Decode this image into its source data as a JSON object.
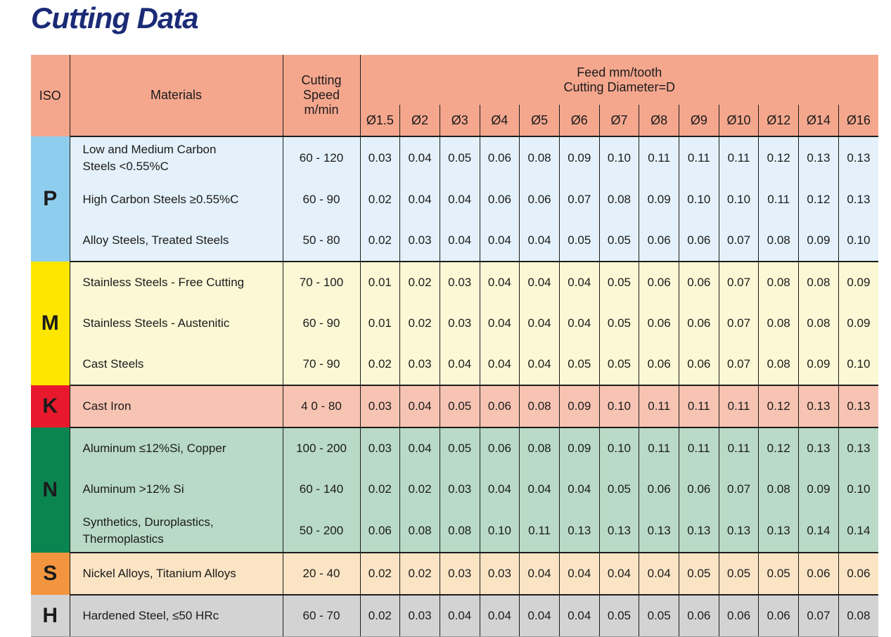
{
  "title": "Cutting Data",
  "colors": {
    "title": "#1B2B76",
    "header_bg": "#F5A78E",
    "border": "#1C1C1C",
    "iso_p": "#8FCDEE",
    "body_p": "#E4F1FA",
    "iso_m": "#FFE600",
    "body_m": "#FCF8D6",
    "iso_k": "#E8192D",
    "body_k": "#F7C3B2",
    "iso_n": "#0B8550",
    "body_n": "#B9DAC6",
    "iso_s": "#F3953F",
    "body_s": "#FBE4C4",
    "iso_h": "#D3D3D3",
    "body_h": "#D3D3D3"
  },
  "table": {
    "headers": {
      "iso": "ISO",
      "materials": "Materials",
      "cutting_speed": "Cutting\nSpeed\nm/min",
      "feed_title": "Feed mm/tooth\nCutting Diameter=D",
      "diameters": [
        "Ø1.5",
        "Ø2",
        "Ø3",
        "Ø4",
        "Ø5",
        "Ø6",
        "Ø7",
        "Ø8",
        "Ø9",
        "Ø10",
        "Ø12",
        "Ø14",
        "Ø16"
      ]
    },
    "groups": [
      {
        "iso": "P",
        "iso_bg": "#8FCDEE",
        "row_bg": "#E4F1FA",
        "rows": [
          {
            "material": "Low and Medium Carbon\nSteels <0.55%C",
            "speed": "60 - 120",
            "feeds": [
              "0.03",
              "0.04",
              "0.05",
              "0.06",
              "0.08",
              "0.09",
              "0.10",
              "0.11",
              "0.11",
              "0.11",
              "0.12",
              "0.13",
              "0.13"
            ]
          },
          {
            "material": "High Carbon Steels ≥0.55%C",
            "speed": "60 - 90",
            "feeds": [
              "0.02",
              "0.04",
              "0.04",
              "0.06",
              "0.06",
              "0.07",
              "0.08",
              "0.09",
              "0.10",
              "0.10",
              "0.11",
              "0.12",
              "0.13"
            ]
          },
          {
            "material": "Alloy Steels, Treated Steels",
            "speed": "50 - 80",
            "feeds": [
              "0.02",
              "0.03",
              "0.04",
              "0.04",
              "0.04",
              "0.05",
              "0.05",
              "0.06",
              "0.06",
              "0.07",
              "0.08",
              "0.09",
              "0.10"
            ]
          }
        ]
      },
      {
        "iso": "M",
        "iso_bg": "#FFE600",
        "row_bg": "#FCF8D6",
        "rows": [
          {
            "material": "Stainless Steels - Free Cutting",
            "speed": "70 - 100",
            "feeds": [
              "0.01",
              "0.02",
              "0.03",
              "0.04",
              "0.04",
              "0.04",
              "0.05",
              "0.06",
              "0.06",
              "0.07",
              "0.08",
              "0.08",
              "0.09"
            ]
          },
          {
            "material": "Stainless Steels - Austenitic",
            "speed": "60 - 90",
            "feeds": [
              "0.01",
              "0.02",
              "0.03",
              "0.04",
              "0.04",
              "0.04",
              "0.05",
              "0.06",
              "0.06",
              "0.07",
              "0.08",
              "0.08",
              "0.09"
            ]
          },
          {
            "material": "Cast Steels",
            "speed": "70 - 90",
            "feeds": [
              "0.02",
              "0.03",
              "0.04",
              "0.04",
              "0.04",
              "0.05",
              "0.05",
              "0.06",
              "0.06",
              "0.07",
              "0.08",
              "0.09",
              "0.10"
            ]
          }
        ]
      },
      {
        "iso": "K",
        "iso_bg": "#E8192D",
        "row_bg": "#F7C3B2",
        "rows": [
          {
            "material": "Cast Iron",
            "speed": "4 0 - 80",
            "feeds": [
              "0.03",
              "0.04",
              "0.05",
              "0.06",
              "0.08",
              "0.09",
              "0.10",
              "0.11",
              "0.11",
              "0.11",
              "0.12",
              "0.13",
              "0.13"
            ]
          }
        ]
      },
      {
        "iso": "N",
        "iso_bg": "#0B8550",
        "row_bg": "#B9DAC6",
        "rows": [
          {
            "material": "Aluminum ≤12%Si, Copper",
            "speed": "100 - 200",
            "feeds": [
              "0.03",
              "0.04",
              "0.05",
              "0.06",
              "0.08",
              "0.09",
              "0.10",
              "0.11",
              "0.11",
              "0.11",
              "0.12",
              "0.13",
              "0.13"
            ]
          },
          {
            "material": "Aluminum >12% Si",
            "speed": "60 - 140",
            "feeds": [
              "0.02",
              "0.02",
              "0.03",
              "0.04",
              "0.04",
              "0.04",
              "0.05",
              "0.06",
              "0.06",
              "0.07",
              "0.08",
              "0.09",
              "0.10"
            ]
          },
          {
            "material": "Synthetics, Duroplastics,\nThermoplastics",
            "speed": "50 - 200",
            "feeds": [
              "0.06",
              "0.08",
              "0.08",
              "0.10",
              "0.11",
              "0.13",
              "0.13",
              "0.13",
              "0.13",
              "0.13",
              "0.13",
              "0.14",
              "0.14"
            ]
          }
        ]
      },
      {
        "iso": "S",
        "iso_bg": "#F3953F",
        "row_bg": "#FBE4C4",
        "rows": [
          {
            "material": "Nickel Alloys, Titanium Alloys",
            "speed": "20 - 40",
            "feeds": [
              "0.02",
              "0.02",
              "0.03",
              "0.03",
              "0.04",
              "0.04",
              "0.04",
              "0.04",
              "0.05",
              "0.05",
              "0.05",
              "0.06",
              "0.06"
            ]
          }
        ]
      },
      {
        "iso": "H",
        "iso_bg": "#D3D3D3",
        "row_bg": "#D3D3D3",
        "rows": [
          {
            "material": "Hardened Steel, ≤50 HRc",
            "speed": "60 - 70",
            "feeds": [
              "0.02",
              "0.03",
              "0.04",
              "0.04",
              "0.04",
              "0.04",
              "0.05",
              "0.05",
              "0.06",
              "0.06",
              "0.06",
              "0.07",
              "0.08"
            ]
          }
        ]
      }
    ]
  }
}
